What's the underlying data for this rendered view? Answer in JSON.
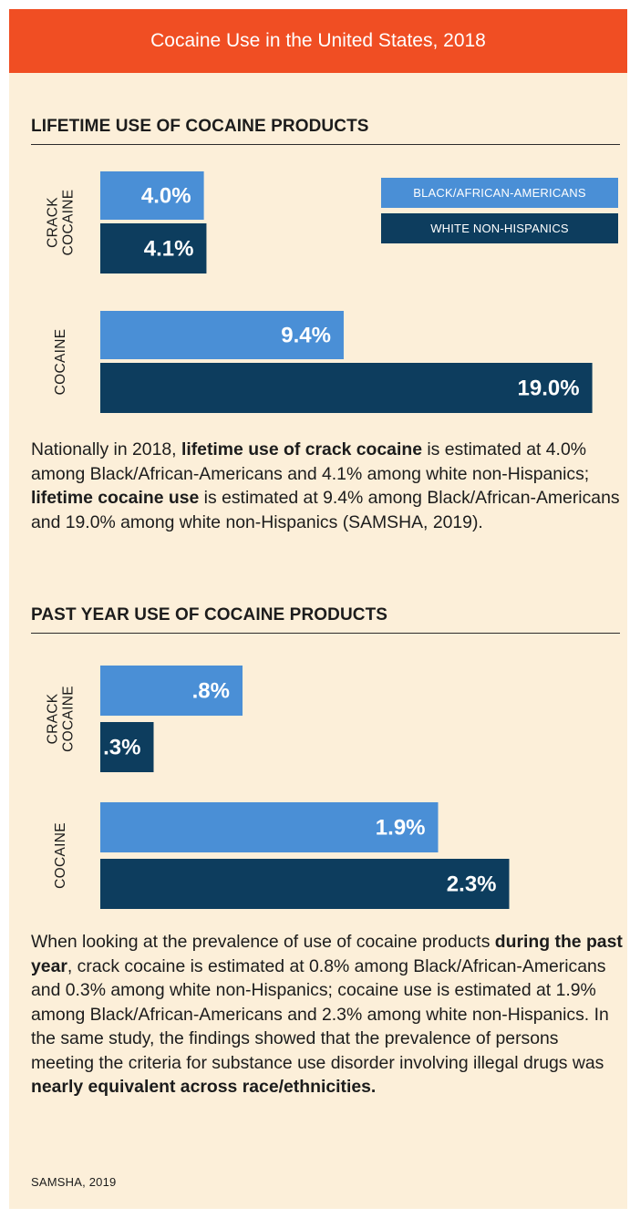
{
  "header": {
    "title": "Cocaine Use in the United States, 2018"
  },
  "chart_data": [
    {
      "type": "bar",
      "orientation": "horizontal",
      "title": "LIFETIME USE OF COCAINE PRODUCTS",
      "categories": [
        "CRACK COCAINE",
        "COCAINE"
      ],
      "category_lines": [
        [
          "CRACK",
          "COCAINE"
        ],
        [
          "COCAINE"
        ]
      ],
      "series": [
        {
          "name": "BLACK/AFRICAN-AMERICANS",
          "color": "#4a8fd6",
          "values": [
            4.0,
            9.4
          ],
          "labels": [
            "4.0%",
            "9.4%"
          ]
        },
        {
          "name": "WHITE NON-HISPANICS",
          "color": "#0d3d5e",
          "values": [
            4.1,
            19.0
          ],
          "labels": [
            "4.1%",
            "19.0%"
          ]
        }
      ],
      "unit": "%",
      "legend": "top-right",
      "grid": false
    },
    {
      "type": "bar",
      "orientation": "horizontal",
      "title": "PAST YEAR USE OF COCAINE PRODUCTS",
      "categories": [
        "CRACK COCAINE",
        "COCAINE"
      ],
      "category_lines": [
        [
          "CRACK",
          "COCAINE"
        ],
        [
          "COCAINE"
        ]
      ],
      "series": [
        {
          "name": "BLACK/AFRICAN-AMERICANS",
          "color": "#4a8fd6",
          "values": [
            0.8,
            1.9
          ],
          "labels": [
            ".8%",
            "1.9%"
          ]
        },
        {
          "name": "WHITE NON-HISPANICS",
          "color": "#0d3d5e",
          "values": [
            0.3,
            2.3
          ],
          "labels": [
            ".3%",
            "2.3%"
          ]
        }
      ],
      "unit": "%",
      "legend": "none",
      "grid": false
    }
  ],
  "paragraph1": {
    "p1": "Nationally in 2018, ",
    "b1": "lifetime use of crack cocaine",
    "p2": " is estimated at 4.0% among Black/African-Americans and 4.1% among white non-Hispanics; ",
    "b2": "lifetime cocaine use",
    "p3": " is estimated at 9.4% among Black/African-Americans and 19.0% among white non-Hispanics (SAMSHA, 2019)."
  },
  "paragraph2": {
    "p1": "When looking at the prevalence of use of cocaine products ",
    "b1": "during the past year",
    "p2": ", crack cocaine is estimated at 0.8% among Black/African-Americans and 0.3% among white non-Hispanics; cocaine use is estimated at 1.9% among Black/African-Americans and 2.3% among white non-Hispanics. In the same study, the findings showed that the prevalence of persons meeting the criteria for substance use disorder involving illegal drugs was ",
    "b2": "nearly equivalent across race/ethnicities."
  },
  "source": "SAMSHA, 2019"
}
